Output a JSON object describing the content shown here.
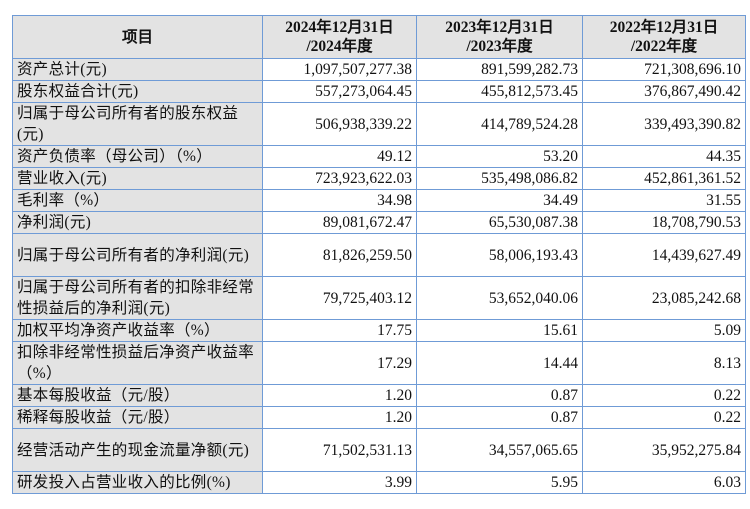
{
  "table": {
    "headers": [
      "项目",
      "2024年12月31日\n/2024年度",
      "2023年12月31日\n/2023年度",
      "2022年12月31日\n/2022年度"
    ],
    "header_lines": [
      [
        "项目"
      ],
      [
        "2024年12月31日",
        "/2024年度"
      ],
      [
        "2023年12月31日",
        "/2023年度"
      ],
      [
        "2022年12月31日",
        "/2022年度"
      ]
    ],
    "rows": [
      {
        "label": "资产总计(元)",
        "values": [
          "1,097,507,277.38",
          "891,599,282.73",
          "721,308,696.10"
        ]
      },
      {
        "label": "股东权益合计(元)",
        "values": [
          "557,273,064.45",
          "455,812,573.45",
          "376,867,490.42"
        ]
      },
      {
        "label": "归属于母公司所有者的股东权益(元)",
        "values": [
          "506,938,339.22",
          "414,789,524.28",
          "339,493,390.82"
        ]
      },
      {
        "label": "资产负债率（母公司）（%）",
        "values": [
          "49.12",
          "53.20",
          "44.35"
        ]
      },
      {
        "label": "营业收入(元)",
        "values": [
          "723,923,622.03",
          "535,498,086.82",
          "452,861,361.52"
        ]
      },
      {
        "label": "毛利率（%）",
        "values": [
          "34.98",
          "34.49",
          "31.55"
        ]
      },
      {
        "label": "净利润(元)",
        "values": [
          "89,081,672.47",
          "65,530,087.38",
          "18,708,790.53"
        ]
      },
      {
        "label": "归属于母公司所有者的净利润(元)",
        "values": [
          "81,826,259.50",
          "58,006,193.43",
          "14,439,627.49"
        ]
      },
      {
        "label": "归属于母公司所有者的扣除非经常性损益后的净利润(元)",
        "values": [
          "79,725,403.12",
          "53,652,040.06",
          "23,085,242.68"
        ]
      },
      {
        "label": "加权平均净资产收益率（%）",
        "values": [
          "17.75",
          "15.61",
          "5.09"
        ]
      },
      {
        "label": "扣除非经常性损益后净资产收益率（%）",
        "values": [
          "17.29",
          "14.44",
          "8.13"
        ]
      },
      {
        "label": "基本每股收益（元/股）",
        "values": [
          "1.20",
          "0.87",
          "0.22"
        ]
      },
      {
        "label": "稀释每股收益（元/股）",
        "values": [
          "1.20",
          "0.87",
          "0.22"
        ]
      },
      {
        "label": "经营活动产生的现金流量净额(元)",
        "values": [
          "71,502,531.13",
          "34,557,065.65",
          "35,952,275.84"
        ]
      },
      {
        "label": "研发投入占营业收入的比例(%)",
        "values": [
          "3.99",
          "5.95",
          "6.03"
        ]
      }
    ]
  },
  "colors": {
    "border": "#6f9bd6",
    "label_background": "#e3e3e3"
  }
}
